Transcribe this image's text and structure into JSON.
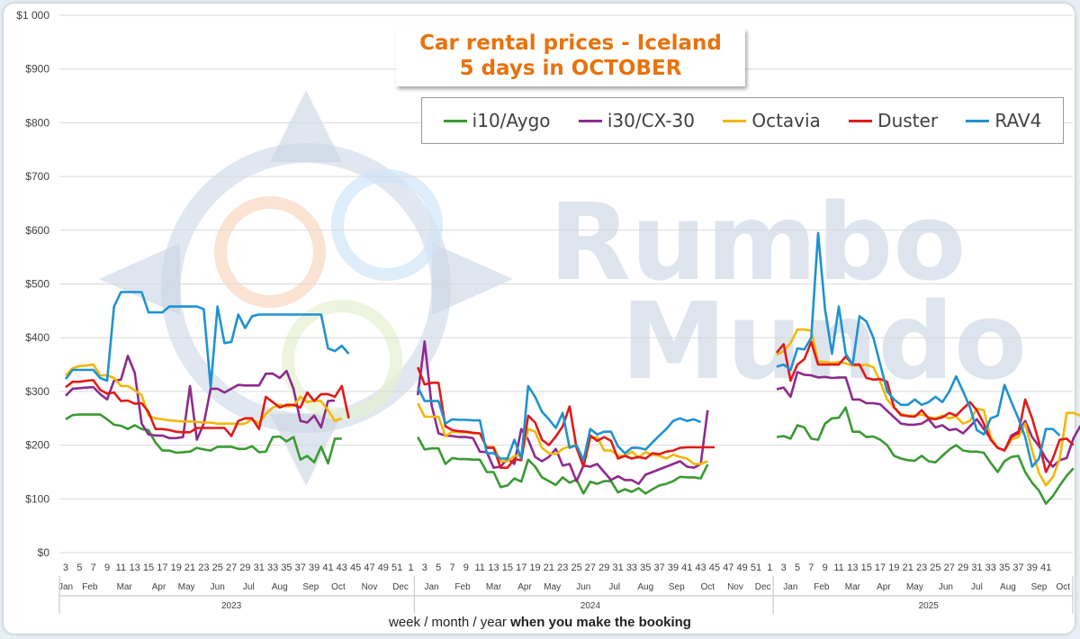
{
  "chart_data": {
    "type": "line",
    "title": "Car rental prices - Iceland",
    "subtitle": "5 days in OCTOBER",
    "xlabel_parts": [
      "week / month / year ",
      "when you make the booking"
    ],
    "y_ticks": [
      "$0",
      "$100",
      "$200",
      "$300",
      "$400",
      "$500",
      "$600",
      "$700",
      "$800",
      "$900",
      "$1 000"
    ],
    "ylim": [
      0,
      1000
    ],
    "grid": "horizontal",
    "legend_position": "top-right",
    "watermark": "Rumbo Mundo",
    "week_ticks": [
      "3",
      "5",
      "7",
      "9",
      "11",
      "13",
      "15",
      "17",
      "19",
      "21",
      "23",
      "25",
      "27",
      "29",
      "31",
      "33",
      "35",
      "37",
      "39",
      "41",
      "43",
      "45",
      "47",
      "49",
      "51",
      "1",
      "3",
      "5",
      "7",
      "9",
      "11",
      "13",
      "15",
      "17",
      "19",
      "21",
      "23",
      "25",
      "27",
      "29",
      "31",
      "33",
      "35",
      "37",
      "39",
      "41",
      "43",
      "45",
      "47",
      "49",
      "51",
      "1",
      "3",
      "5",
      "7",
      "9",
      "11",
      "13",
      "15",
      "17",
      "19",
      "21",
      "23",
      "25",
      "27",
      "29",
      "31",
      "33",
      "35",
      "37",
      "39",
      "41"
    ],
    "months": [
      {
        "label": "Jan",
        "i": 0
      },
      {
        "label": "Feb",
        "i": 3.5
      },
      {
        "label": "Mar",
        "i": 8.5
      },
      {
        "label": "Apr",
        "i": 13.5
      },
      {
        "label": "May",
        "i": 17.5
      },
      {
        "label": "Jun",
        "i": 22
      },
      {
        "label": "Jul",
        "i": 26.5
      },
      {
        "label": "Aug",
        "i": 31
      },
      {
        "label": "Sep",
        "i": 35.5
      },
      {
        "label": "Oct",
        "i": 39.5
      },
      {
        "label": "Nov",
        "i": 44
      },
      {
        "label": "Dec",
        "i": 48.5
      },
      {
        "label": "Jan",
        "i": 53
      },
      {
        "label": "Feb",
        "i": 57.5
      },
      {
        "label": "Mar",
        "i": 62
      },
      {
        "label": "Apr",
        "i": 66.5
      },
      {
        "label": "May",
        "i": 70.5
      },
      {
        "label": "Jun",
        "i": 75
      },
      {
        "label": "Jul",
        "i": 79.5
      },
      {
        "label": "Aug",
        "i": 84
      },
      {
        "label": "Sep",
        "i": 88.5
      },
      {
        "label": "Oct",
        "i": 93
      },
      {
        "label": "Nov",
        "i": 97
      },
      {
        "label": "Dec",
        "i": 101
      },
      {
        "label": "Jan",
        "i": 105
      },
      {
        "label": "Feb",
        "i": 109.5
      },
      {
        "label": "Mar",
        "i": 114
      },
      {
        "label": "Apr",
        "i": 118.5
      },
      {
        "label": "May",
        "i": 123
      },
      {
        "label": "Jun",
        "i": 127.5
      },
      {
        "label": "Jul",
        "i": 132
      },
      {
        "label": "Aug",
        "i": 136.5
      },
      {
        "label": "Sep",
        "i": 141
      },
      {
        "label": "Oct",
        "i": 144.5
      }
    ],
    "years": [
      {
        "label": "2023",
        "i": 24
      },
      {
        "label": "2024",
        "i": 76
      },
      {
        "label": "2025",
        "i": 125
      }
    ],
    "year_dividers": [
      50.5,
      102.5
    ],
    "series": [
      {
        "name": "i10/Aygo",
        "color": "#3a9a32",
        "segments": [
          {
            "start": 0,
            "values": [
              248,
              256,
              257,
              257,
              257,
              257,
              248,
              238,
              236,
              230,
              237,
              230,
              228,
              205,
              190,
              190,
              186,
              187,
              188,
              195,
              192,
              190,
              197,
              197,
              197,
              193,
              193,
              198,
              187,
              188,
              215,
              216,
              207,
              215,
              173,
              180,
              168,
              197,
              166,
              212,
              212
            ]
          },
          {
            "start": 51,
            "values": [
              215,
              192,
              194,
              194,
              165,
              176,
              174,
              174,
              173,
              173,
              150,
              150,
              122,
              125,
              138,
              132,
              173,
              160,
              140,
              133,
              126,
              140,
              130,
              136,
              110,
              132,
              128,
              133,
              133,
              112,
              118,
              113,
              120,
              110,
              118,
              125,
              128,
              133,
              141,
              140,
              140,
              138,
              164
            ]
          },
          {
            "start": 103,
            "values": [
              215,
              217,
              212,
              237,
              233,
              212,
              210,
              240,
              250,
              251,
              270,
              225,
              225,
              215,
              216,
              210,
              200,
              180,
              175,
              172,
              171,
              180,
              170,
              168,
              180,
              192,
              200,
              190,
              188,
              188,
              186,
              167,
              150,
              170,
              178,
              180,
              150,
              130,
              115,
              91,
              105,
              125,
              143,
              157
            ]
          }
        ]
      },
      {
        "name": "i30/CX-30",
        "color": "#8e2a8e",
        "segments": [
          {
            "start": 0,
            "values": [
              292,
              305,
              306,
              307,
              308,
              295,
              285,
              320,
              322,
              366,
              335,
              240,
              220,
              218,
              218,
              213,
              213,
              215,
              310,
              210,
              240,
              305,
              305,
              298,
              305,
              312,
              311,
              311,
              311,
              333,
              333,
              325,
              338,
              305,
              245,
              242,
              255,
              233,
              282,
              283
            ]
          },
          {
            "start": 51,
            "values": [
              293,
              393,
              275,
              222,
              218,
              217,
              215,
              215,
              213,
              188,
              187,
              158,
              160,
              175,
              165,
              230,
              210,
              178,
              170,
              178,
              193,
              162,
              165,
              133,
              162,
              160,
              165,
              150,
              135,
              142,
              135,
              135,
              128,
              145,
              150,
              155,
              160,
              165,
              170,
              160,
              158,
              165,
              265
            ]
          },
          {
            "start": 103,
            "values": [
              304,
              307,
              290,
              336,
              331,
              330,
              326,
              327,
              325,
              326,
              326,
              285,
              285,
              278,
              278,
              276,
              264,
              252,
              240,
              238,
              238,
              240,
              248,
              233,
              237,
              228,
              230,
              222,
              235,
              248,
              230,
              212,
              195,
              190,
              218,
              225,
              245,
              215,
              198,
              175,
              160,
              172,
              176,
              213,
              236
            ]
          }
        ]
      },
      {
        "name": "Octavia",
        "color": "#f2b705",
        "segments": [
          {
            "start": 0,
            "values": [
              330,
              343,
              347,
              348,
              350,
              330,
              330,
              325,
              310,
              310,
              302,
              293,
              255,
              250,
              248,
              246,
              245,
              244,
              244,
              243,
              242,
              242,
              240,
              240,
              240,
              239,
              240,
              248,
              240,
              258,
              270,
              275,
              272,
              273,
              290,
              280,
              283,
              282,
              265,
              245,
              250
            ]
          },
          {
            "start": 51,
            "values": [
              278,
              253,
              253,
              253,
              217,
              225,
              224,
              224,
              222,
              222,
              197,
              197,
              170,
              170,
              180,
              181,
              230,
              225,
              195,
              185,
              183,
              193,
              198,
              200,
              160,
              213,
              215,
              190,
              190,
              180,
              180,
              188,
              177,
              187,
              182,
              180,
              175,
              182,
              178,
              175,
              165,
              165,
              170
            ]
          },
          {
            "start": 103,
            "values": [
              368,
              375,
              390,
              415,
              415,
              413,
              355,
              355,
              353,
              355,
              352,
              348,
              348,
              350,
              345,
              318,
              285,
              270,
              258,
              255,
              255,
              257,
              252,
              250,
              255,
              250,
              253,
              240,
              245,
              268,
              265,
              215,
              195,
              190,
              210,
              215,
              240,
              190,
              148,
              125,
              140,
              175,
              260,
              260,
              255
            ]
          }
        ]
      },
      {
        "name": "Duster",
        "color": "#e01a1a",
        "segments": [
          {
            "start": 0,
            "values": [
              308,
              318,
              318,
              320,
              321,
              303,
              296,
              298,
              282,
              283,
              277,
              278,
              262,
              230,
              230,
              228,
              225,
              224,
              224,
              232,
              232,
              232,
              232,
              232,
              217,
              245,
              250,
              250,
              230,
              290,
              280,
              270,
              275,
              275,
              270,
              298,
              282,
              295,
              295,
              290,
              310,
              250
            ]
          },
          {
            "start": 51,
            "values": [
              345,
              313,
              316,
              316,
              235,
              228,
              226,
              225,
              223,
              222,
              195,
              195,
              158,
              158,
              174,
              172,
              255,
              242,
              210,
              200,
              216,
              235,
              272,
              195,
              160,
              218,
              208,
              215,
              208,
              175,
              180,
              175,
              178,
              175,
              185,
              183,
              188,
              190,
              195,
              196,
              196,
              196,
              196,
              196
            ]
          },
          {
            "start": 103,
            "values": [
              372,
              388,
              320,
              350,
              360,
              392,
              350,
              350,
              350,
              350,
              365,
              350,
              350,
              325,
              322,
              323,
              318,
              270,
              256,
              254,
              253,
              265,
              250,
              248,
              252,
              260,
              255,
              268,
              280,
              265,
              240,
              210,
              195,
              190,
              215,
              222,
              285,
              250,
              205,
              150,
              175,
              210,
              212,
              200
            ]
          }
        ]
      },
      {
        "name": "RAV4",
        "color": "#1e92d0",
        "segments": [
          {
            "start": 0,
            "values": [
              323,
              340,
              340,
              340,
              340,
              325,
              320,
              458,
              485,
              485,
              485,
              485,
              447,
              447,
              447,
              458,
              458,
              458,
              458,
              458,
              453,
              308,
              458,
              390,
              392,
              443,
              418,
              440,
              443,
              443,
              443,
              443,
              443,
              443,
              443,
              443,
              443,
              443,
              380,
              375,
              385,
              370
            ]
          },
          {
            "start": 51,
            "values": [
              308,
              282,
              282,
              282,
              240,
              248,
              247,
              247,
              246,
              246,
              185,
              185,
              175,
              175,
              210,
              175,
              310,
              290,
              262,
              248,
              232,
              260,
              195,
              200,
              172,
              230,
              220,
              225,
              225,
              198,
              185,
              195,
              195,
              192,
              205,
              218,
              230,
              245,
              250,
              245,
              248,
              243
            ]
          },
          {
            "start": 103,
            "values": [
              346,
              350,
              340,
              380,
              378,
              400,
              595,
              453,
              370,
              458,
              370,
              350,
              440,
              430,
              400,
              350,
              300,
              285,
              275,
              275,
              285,
              275,
              280,
              290,
              280,
              300,
              328,
              300,
              270,
              228,
              220,
              250,
              255,
              312,
              280,
              250,
              215,
              160,
              175,
              230,
              230,
              218
            ]
          }
        ]
      }
    ]
  }
}
